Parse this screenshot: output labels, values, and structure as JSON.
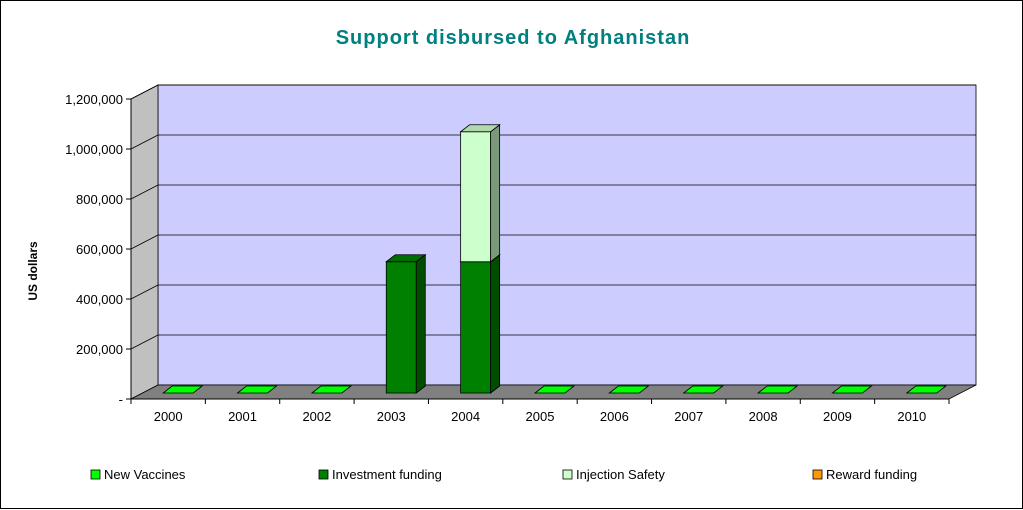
{
  "chart_data": {
    "type": "bar",
    "stacked": true,
    "three_d": true,
    "title": "Support disbursed to Afghanistan",
    "ylabel": "US dollars",
    "xlabel": "",
    "categories": [
      "2000",
      "2001",
      "2002",
      "2003",
      "2004",
      "2005",
      "2006",
      "2007",
      "2008",
      "2009",
      "2010"
    ],
    "ylim": [
      0,
      1200000
    ],
    "yticks": [
      0,
      200000,
      400000,
      600000,
      800000,
      1000000,
      1200000
    ],
    "ytick_labels": [
      "-",
      "200,000",
      "400,000",
      "600,000",
      "800,000",
      "1,000,000",
      "1,200,000"
    ],
    "grid": true,
    "legend_position": "bottom",
    "series": [
      {
        "name": "New Vaccines",
        "color": "#00FF00",
        "values": [
          0,
          0,
          0,
          0,
          0,
          0,
          0,
          0,
          0,
          0,
          0
        ]
      },
      {
        "name": "Investment funding",
        "color": "#008000",
        "values": [
          0,
          0,
          0,
          525000,
          525000,
          0,
          0,
          0,
          0,
          0,
          0
        ]
      },
      {
        "name": "Injection Safety",
        "color": "#CCFFCC",
        "values": [
          0,
          0,
          0,
          0,
          520000,
          0,
          0,
          0,
          0,
          0,
          0
        ]
      },
      {
        "name": "Reward funding",
        "color": "#FF9900",
        "values": [
          0,
          0,
          0,
          0,
          0,
          0,
          0,
          0,
          0,
          0,
          0
        ]
      }
    ],
    "colors": {
      "title": "#008080",
      "wall": "#CCCCFF",
      "floor": "#808080",
      "side_wall": "#C0C0C0"
    }
  }
}
